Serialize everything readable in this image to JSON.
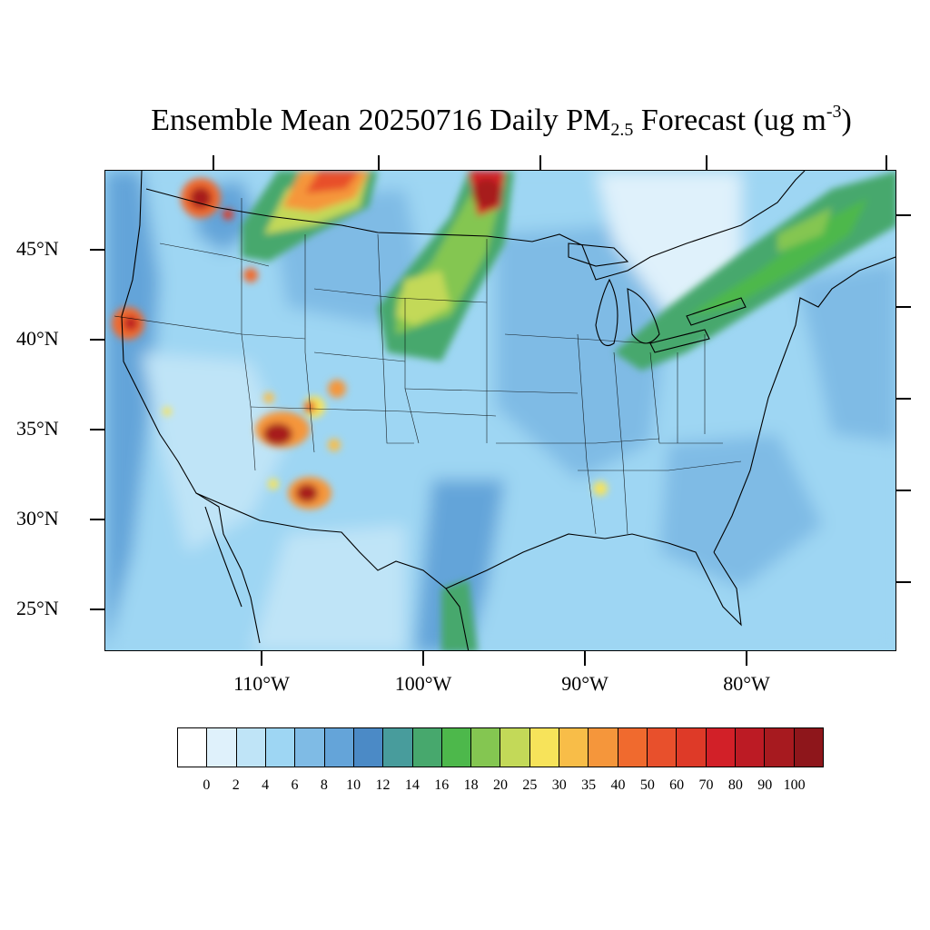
{
  "title": {
    "prefix": "Ensemble Mean 20250716 Daily PM",
    "subscript": "2.5",
    "middle": " Forecast (ug m",
    "superscript": "-3",
    "suffix": ")"
  },
  "map": {
    "lat_labels": [
      "45°N",
      "40°N",
      "35°N",
      "30°N",
      "25°N"
    ],
    "lon_labels": [
      "110°W",
      "100°W",
      "90°W",
      "80°W"
    ],
    "base_color": "#9ed6f3"
  },
  "colorbar": {
    "colors": [
      "#ffffff",
      "#dff1fb",
      "#bfe4f7",
      "#9ed6f3",
      "#7fbbe5",
      "#64a4d9",
      "#4b8ac6",
      "#489c9c",
      "#47a86d",
      "#4db84b",
      "#84c651",
      "#c3d958",
      "#f7e35a",
      "#f8bd48",
      "#f5963b",
      "#f06a2e",
      "#e8502c",
      "#de3a28",
      "#d22028",
      "#bc1b24",
      "#a71a1f",
      "#8e161b"
    ],
    "labels": [
      "0",
      "2",
      "4",
      "6",
      "8",
      "10",
      "12",
      "14",
      "16",
      "18",
      "20",
      "25",
      "30",
      "35",
      "40",
      "50",
      "60",
      "70",
      "80",
      "90",
      "100"
    ]
  }
}
